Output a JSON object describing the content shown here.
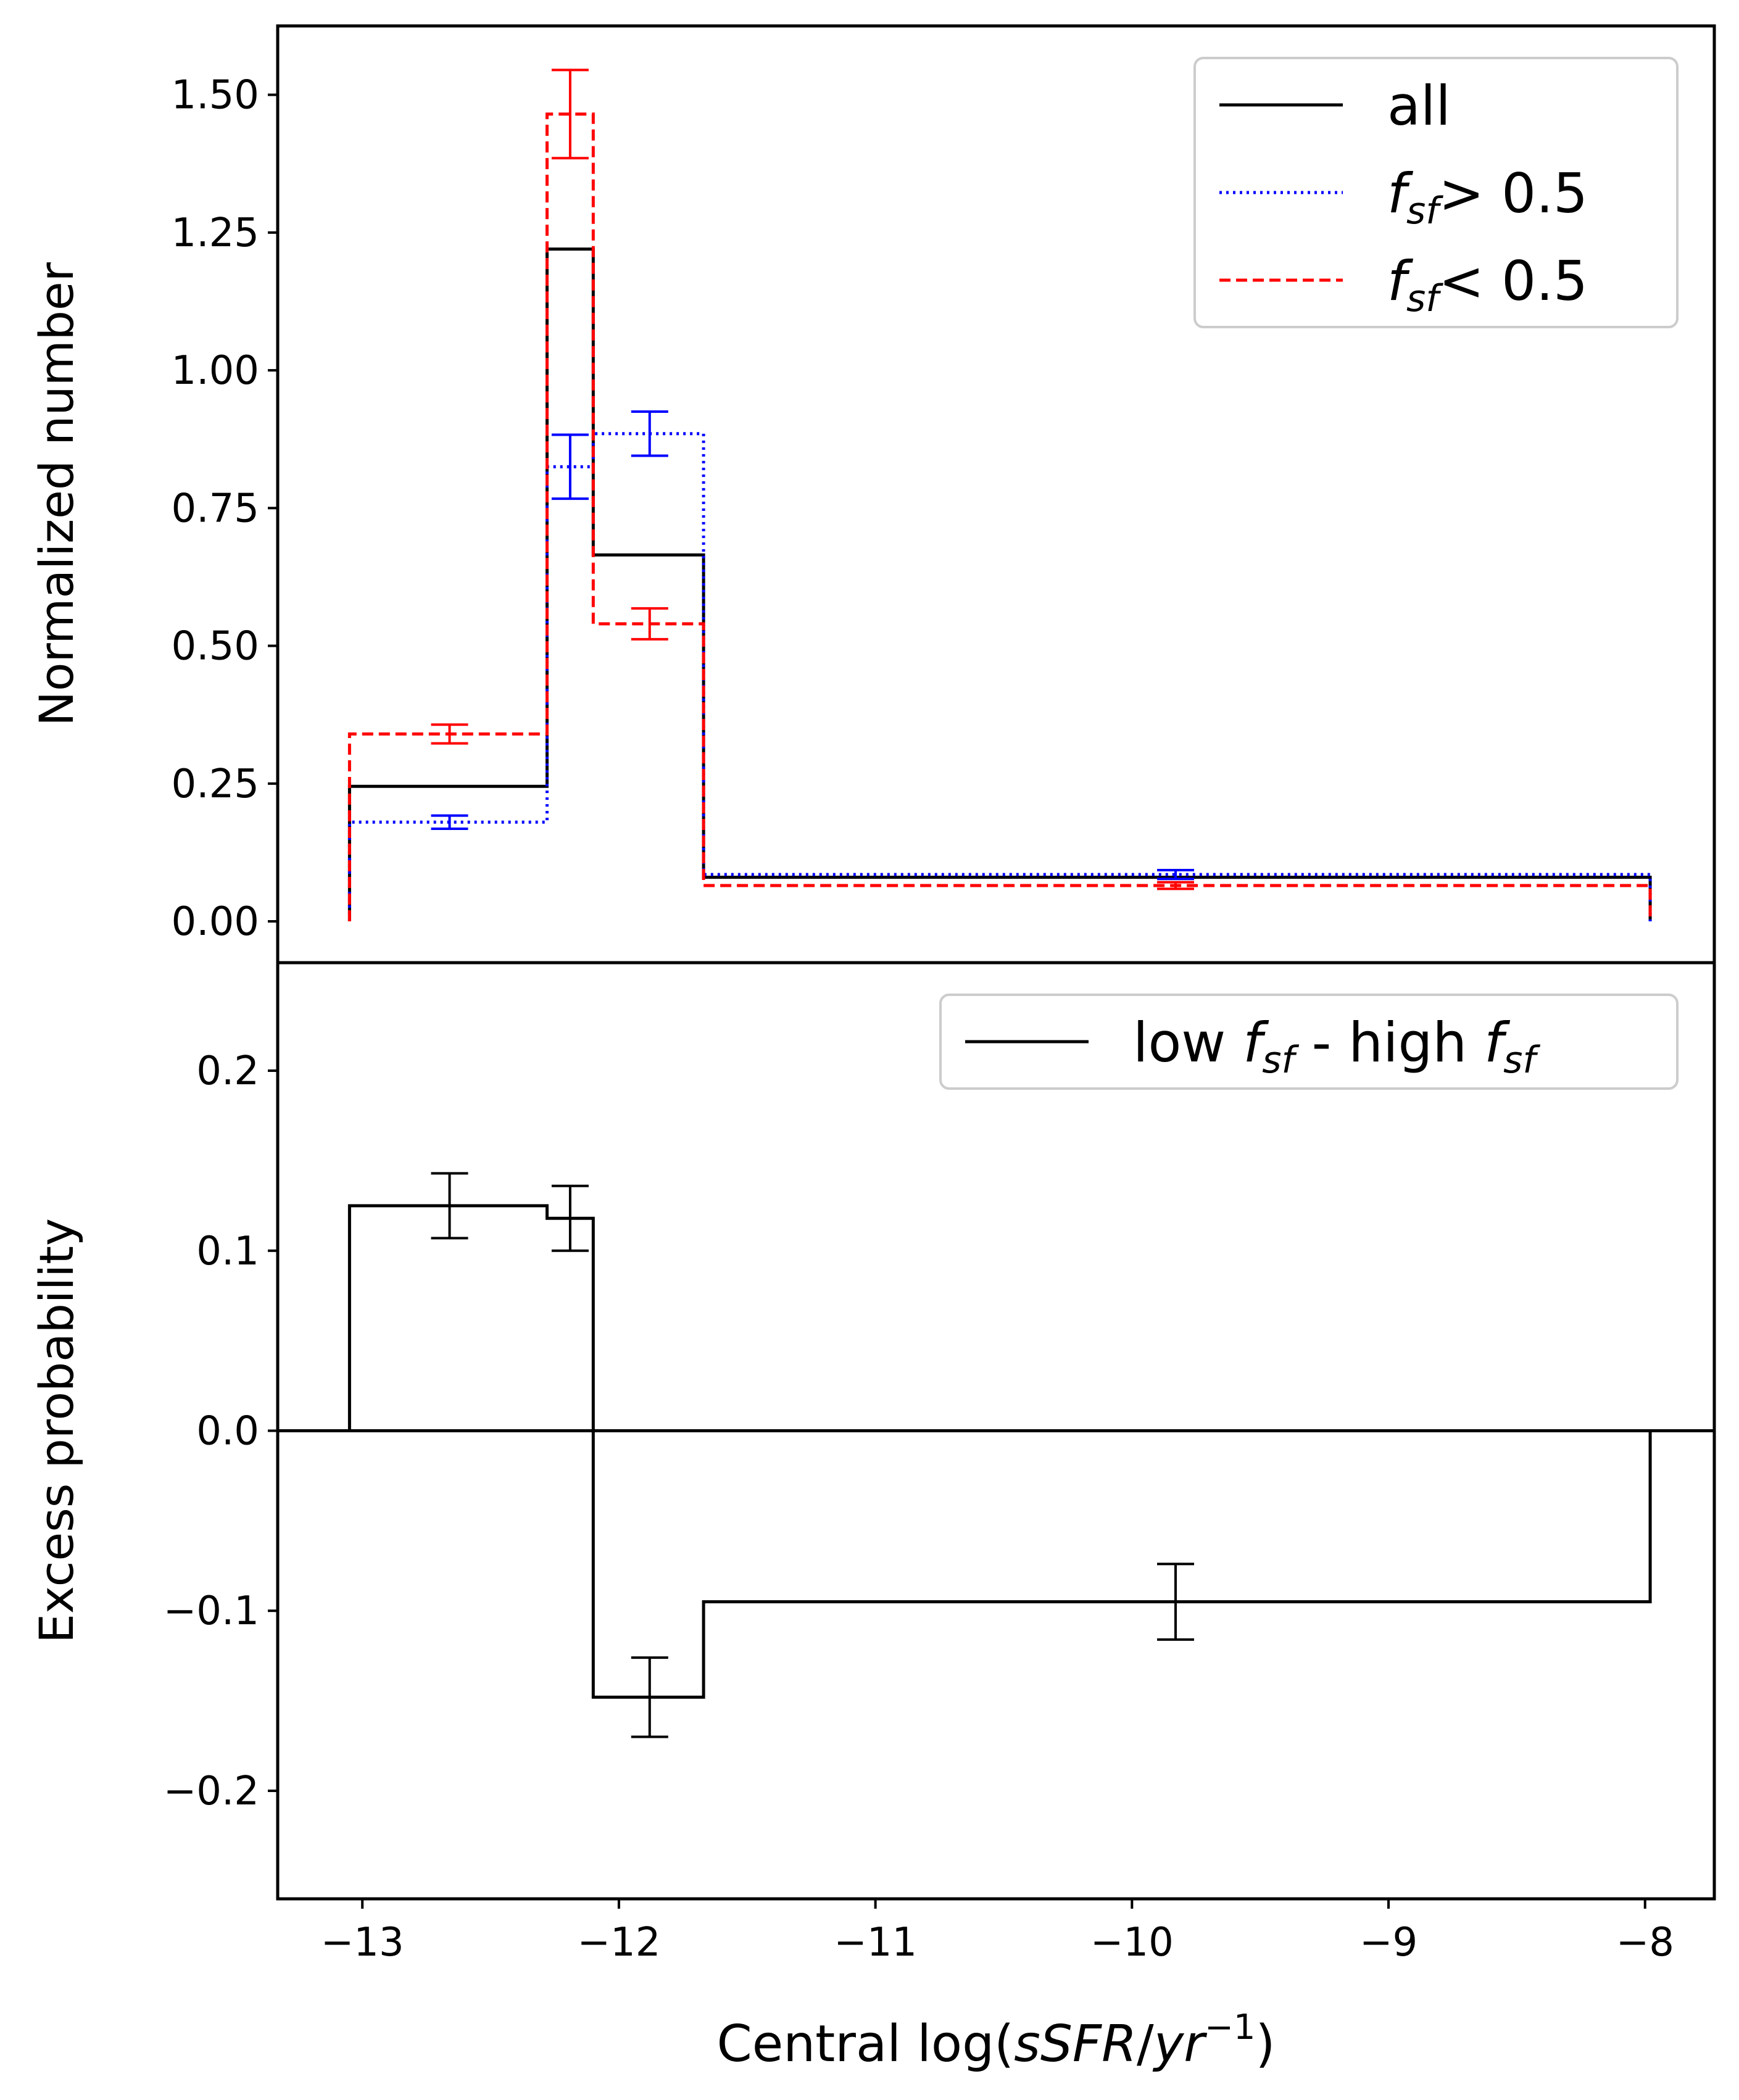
{
  "chart_data": [
    {
      "type": "step",
      "panel": "top",
      "ylabel": "Normalized number",
      "xlim": [
        -13.33,
        -7.73
      ],
      "ylim": [
        -0.075,
        1.625
      ],
      "yticks": [
        0.0,
        0.25,
        0.5,
        0.75,
        1.0,
        1.25,
        1.5
      ],
      "ytick_labels": [
        "0.00",
        "0.25",
        "0.50",
        "0.75",
        "1.00",
        "1.25",
        "1.50"
      ],
      "bin_edges": [
        -13.05,
        -12.28,
        -12.1,
        -11.67,
        -7.98
      ],
      "bin_centers": [
        -12.66,
        -12.19,
        -11.88,
        -9.83
      ],
      "legend_position": "top-right",
      "series": [
        {
          "name": "all",
          "label_parts": [
            "all"
          ],
          "color": "#000000",
          "style": "solid",
          "values": [
            0.245,
            1.22,
            0.665,
            0.08
          ],
          "errors": null
        },
        {
          "name": "f_sf > 0.5",
          "label_parts": [
            "f",
            "sf",
            "> 0.5"
          ],
          "color": "#0000ff",
          "style": "dotted",
          "values": [
            0.18,
            0.825,
            0.885,
            0.085
          ],
          "errors": [
            0.012,
            0.058,
            0.04,
            0.008
          ]
        },
        {
          "name": "f_sf < 0.5",
          "label_parts": [
            "f",
            "sf",
            "< 0.5"
          ],
          "color": "#ff0000",
          "style": "dashed",
          "values": [
            0.34,
            1.465,
            0.54,
            0.065
          ],
          "errors": [
            0.017,
            0.08,
            0.028,
            0.006
          ]
        }
      ]
    },
    {
      "type": "step",
      "panel": "bottom",
      "ylabel": "Excess probability",
      "xlabel_prefix": "Central log(",
      "xlabel_italic": "sSFR",
      "xlabel_slash": "/",
      "xlabel_unit": "yr",
      "xlabel_exp": "−1",
      "xlabel_suffix": ")",
      "xlim": [
        -13.33,
        -7.73
      ],
      "ylim": [
        -0.26,
        0.26
      ],
      "xticks": [
        -13,
        -12,
        -11,
        -10,
        -9,
        -8
      ],
      "xtick_labels": [
        "−13",
        "−12",
        "−11",
        "−10",
        "−9",
        "−8"
      ],
      "yticks": [
        -0.2,
        -0.1,
        0.0,
        0.1,
        0.2
      ],
      "ytick_labels": [
        "−0.2",
        "−0.1",
        "0.0",
        "0.1",
        "0.2"
      ],
      "reference_line": 0.0,
      "bin_edges": [
        -13.05,
        -12.28,
        -12.1,
        -11.67,
        -7.98
      ],
      "bin_centers": [
        -12.66,
        -12.19,
        -11.88,
        -9.83
      ],
      "legend_position": "top-right",
      "series": [
        {
          "name": "low f_sf - high f_sf",
          "label_parts": [
            "low ",
            "f",
            "sf",
            " - high ",
            "f",
            "sf"
          ],
          "color": "#000000",
          "style": "solid",
          "values": [
            0.125,
            0.118,
            -0.148,
            -0.095
          ],
          "errors": [
            0.018,
            0.018,
            0.022,
            0.021
          ]
        }
      ]
    }
  ]
}
